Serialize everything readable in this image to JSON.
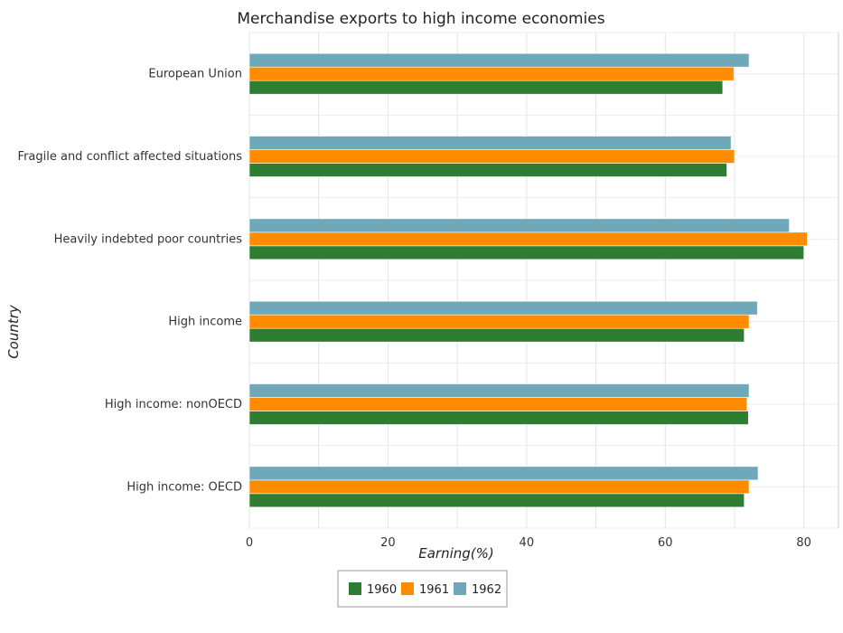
{
  "chart_data": {
    "type": "bar",
    "orientation": "horizontal",
    "title": "Merchandise exports to high income economies",
    "xlabel": "Earning(%)",
    "ylabel": "Country",
    "xlim": [
      0,
      85
    ],
    "xticks": [
      0,
      20,
      40,
      60,
      80
    ],
    "grid": true,
    "legend_position": "bottom-center",
    "categories": [
      "European Union",
      "Fragile and conflict affected situations",
      "Heavily indebted poor countries",
      "High income",
      "High income: nonOECD",
      "High income: OECD"
    ],
    "series": [
      {
        "name": "1960",
        "color": "#2e7d32",
        "values": [
          68.3,
          68.9,
          80.0,
          71.4,
          72.0,
          71.4
        ]
      },
      {
        "name": "1961",
        "color": "#ff8c00",
        "values": [
          69.9,
          70.0,
          80.5,
          72.1,
          71.8,
          72.1
        ]
      },
      {
        "name": "1962",
        "color": "#6fa8b8",
        "values": [
          72.1,
          69.5,
          77.9,
          73.3,
          72.1,
          73.4
        ]
      }
    ]
  }
}
